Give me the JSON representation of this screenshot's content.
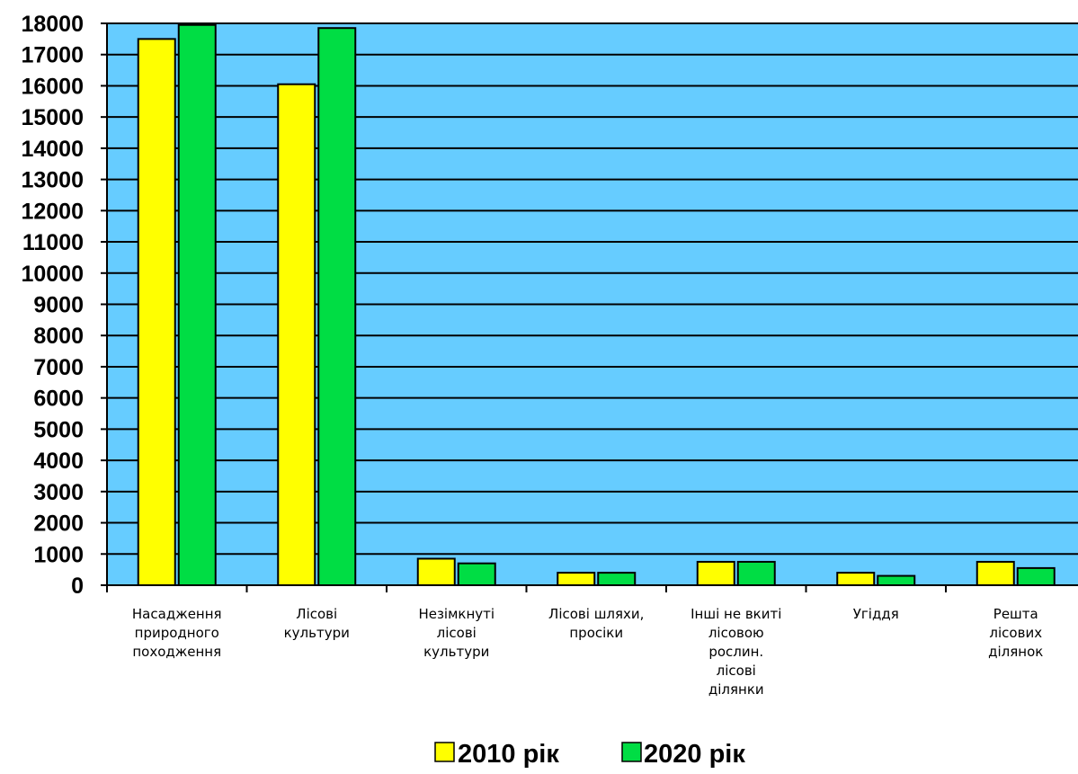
{
  "chart_data": {
    "type": "bar",
    "title": "",
    "xlabel": "",
    "ylabel": "",
    "ylim": [
      0,
      18000
    ],
    "ytick_step": 1000,
    "grid": true,
    "legend_position": "bottom",
    "colors": {
      "plot_background": "#66ccff",
      "grid": "#000000",
      "series_2010": "#ffff00",
      "series_2020": "#00dd44"
    },
    "categories": [
      [
        "Насадження",
        "природного",
        "походження"
      ],
      [
        "Лісові",
        "культури"
      ],
      [
        "Незімкнуті",
        "лісові",
        "культури"
      ],
      [
        "Лісові шляхи,",
        "просіки"
      ],
      [
        "Інші не вкиті",
        "лісовою",
        "рослин.",
        "лісові",
        "ділянки"
      ],
      [
        "Угіддя"
      ],
      [
        "Решта",
        "лісових",
        "ділянок"
      ]
    ],
    "series": [
      {
        "name": "2010 рік",
        "values": [
          17500,
          16050,
          850,
          400,
          750,
          400,
          750
        ]
      },
      {
        "name": "2020 рік",
        "values": [
          17950,
          17850,
          700,
          400,
          750,
          300,
          550
        ]
      }
    ]
  }
}
